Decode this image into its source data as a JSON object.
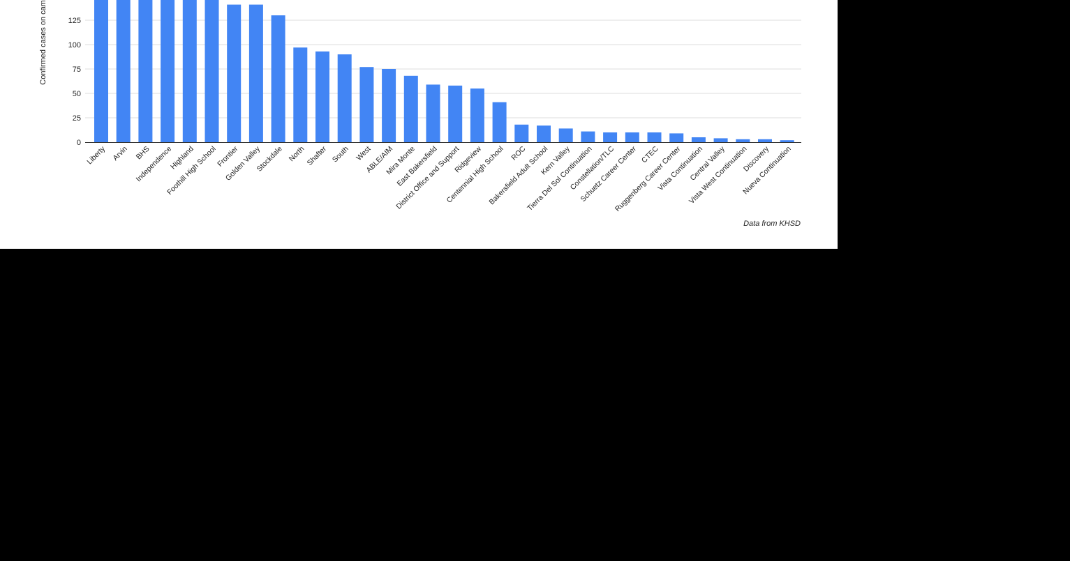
{
  "chart_data": {
    "type": "bar",
    "title": "",
    "xlabel": "",
    "ylabel": "Confirmed cases on campus",
    "ylim": [
      0,
      150
    ],
    "yticks": [
      0,
      25,
      50,
      75,
      100,
      125
    ],
    "grid": true,
    "legend": "none",
    "source_note": "Data from KHSD",
    "bar_color": "#4285f4",
    "categories": [
      "Liberty",
      "Arvin",
      "BHS",
      "Independence",
      "Highland",
      "Foothill High School",
      "Frontier",
      "Golden Valley",
      "Stockdale",
      "North",
      "Shafter",
      "South",
      "West",
      "ABLE/AIM",
      "Mira Monte",
      "East Bakersfield",
      "District Office and Support",
      "Ridgeview",
      "Centennial High School",
      "ROC",
      "Bakersfield Adult School",
      "Kern Valley",
      "Tierra Del Sol Continuation",
      "Constellation/TLC",
      "Schuetz Career Center",
      "CTEC",
      "Ruggenberg Career Center",
      "Vista Continuation",
      "Central Valley",
      "Vista West Continuation",
      "Discovery",
      "Nueva Continuation"
    ],
    "values": [
      150,
      150,
      150,
      150,
      150,
      150,
      141,
      141,
      130,
      97,
      93,
      90,
      77,
      75,
      68,
      59,
      58,
      55,
      41,
      18,
      17,
      14,
      11,
      10,
      10,
      10,
      9,
      5,
      4,
      3,
      3,
      2
    ]
  }
}
